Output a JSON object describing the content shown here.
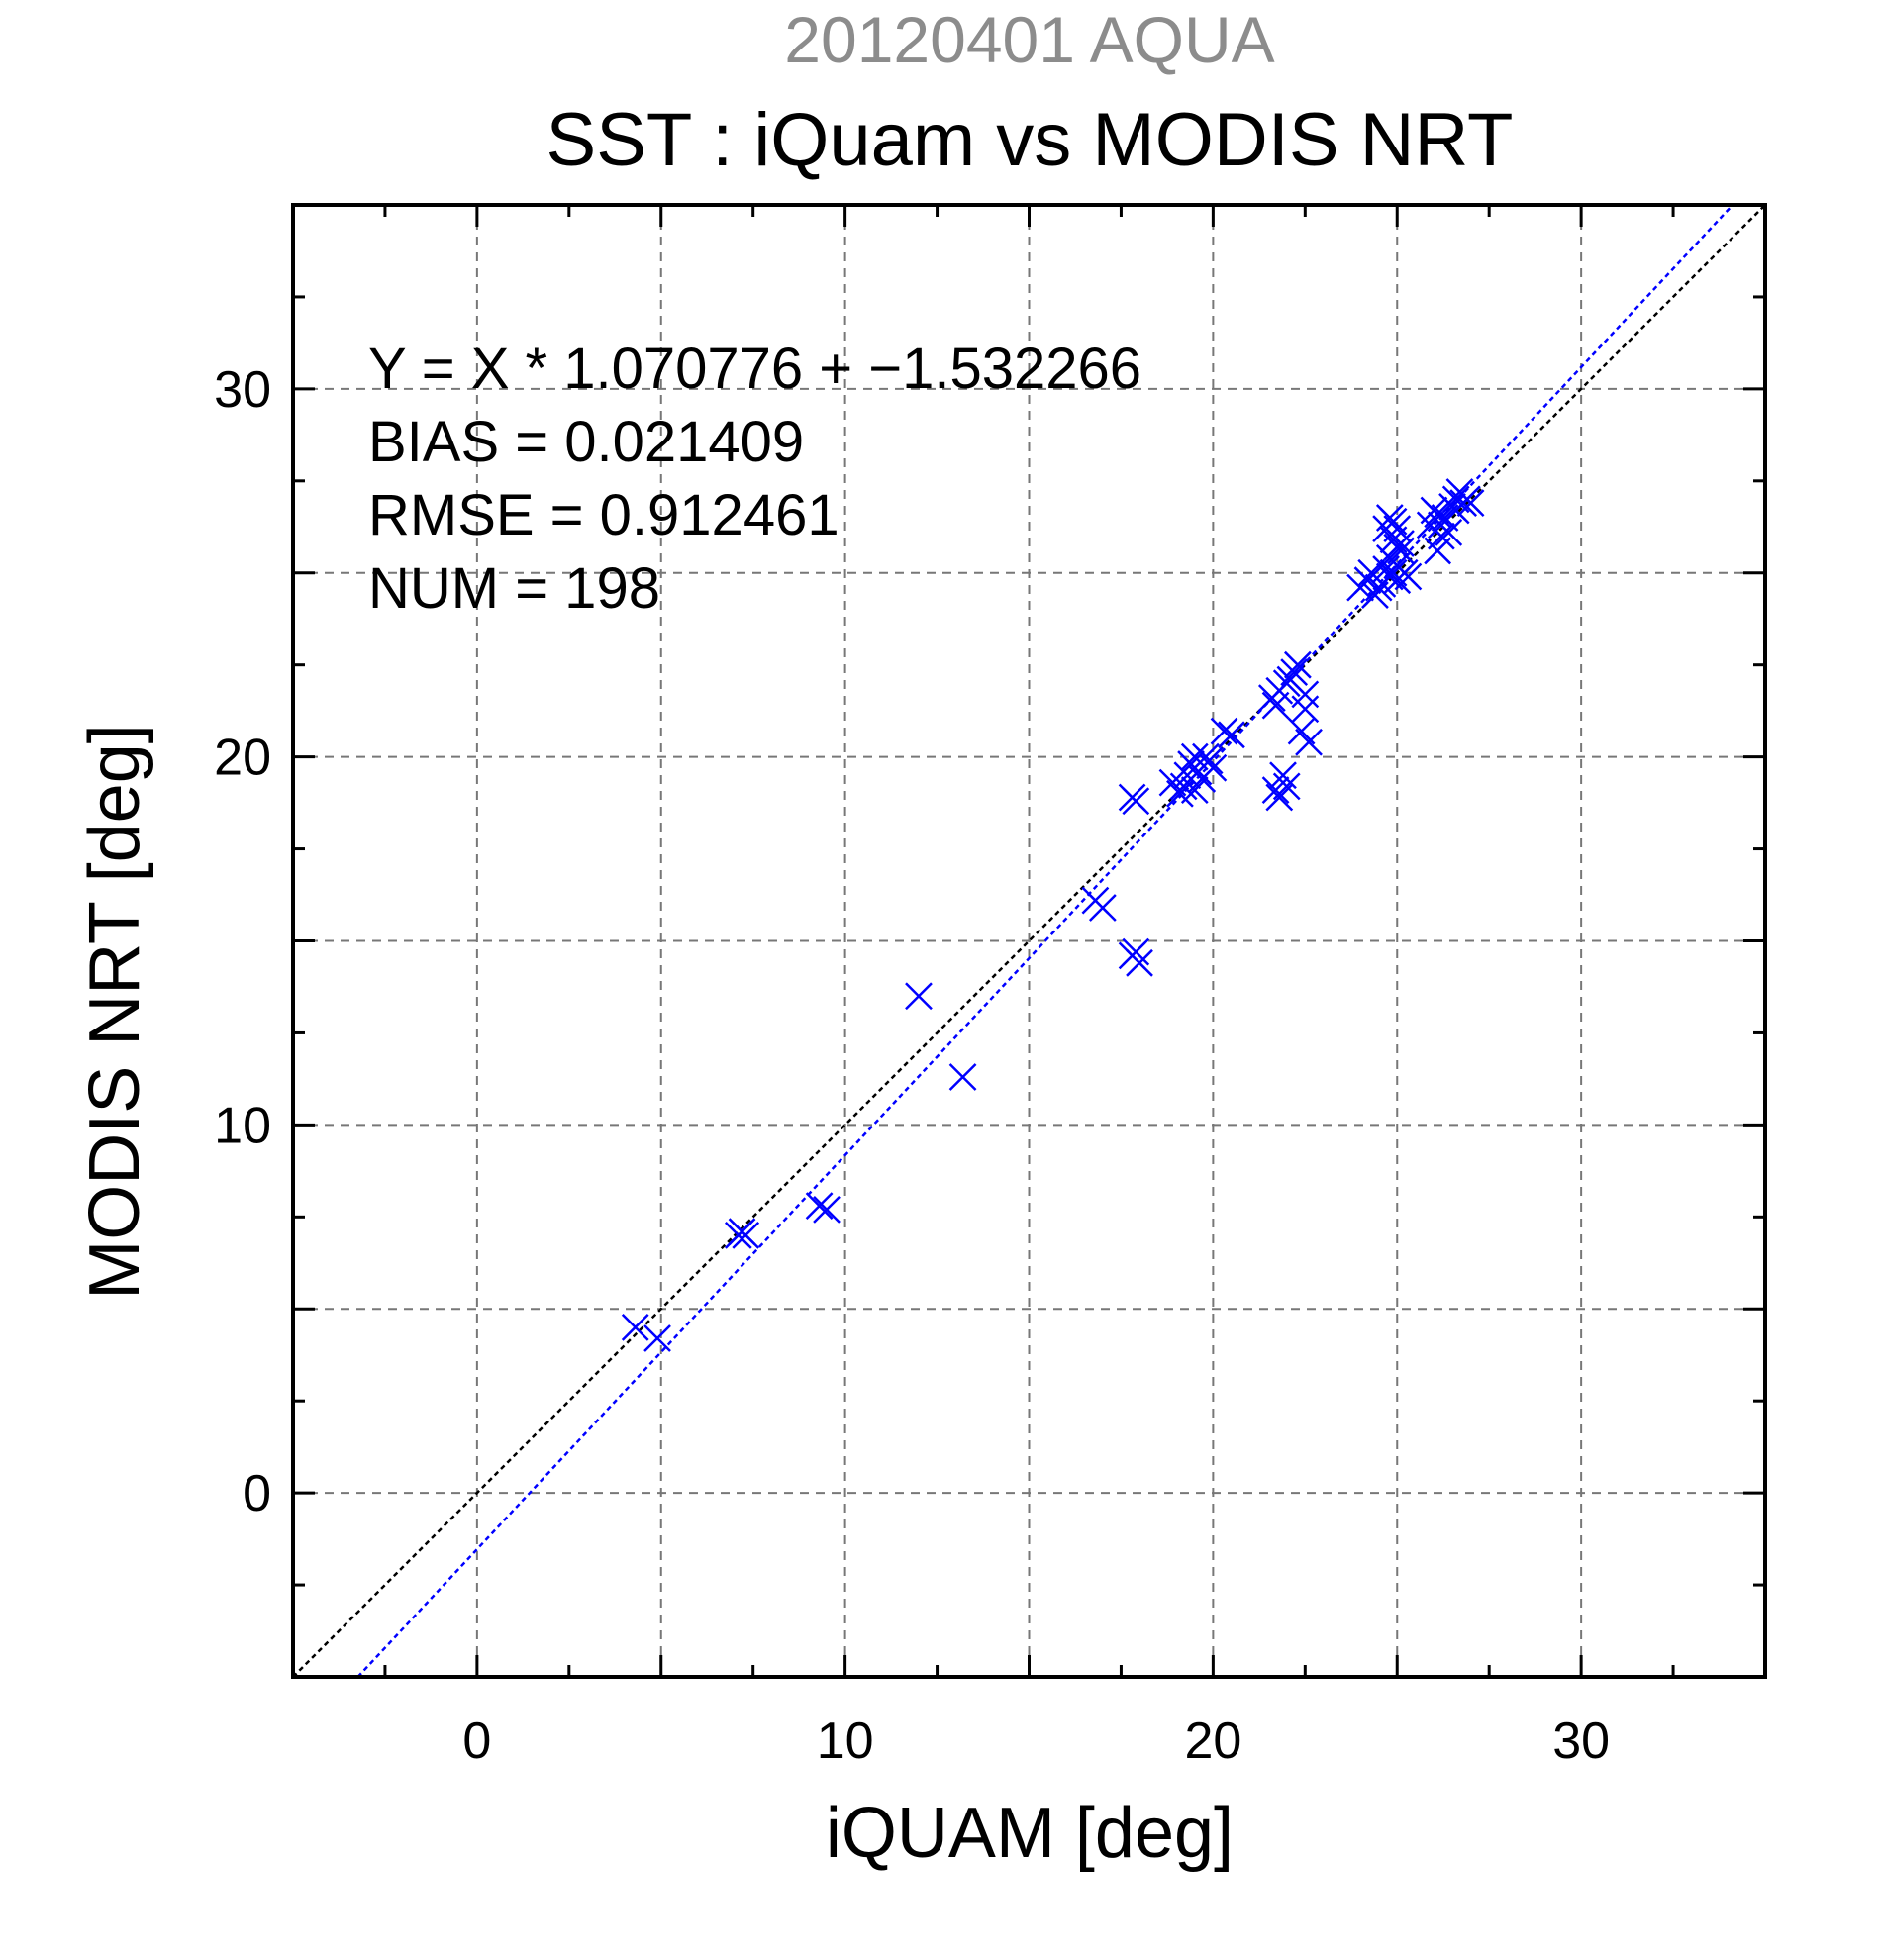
{
  "chart_data": {
    "type": "scatter",
    "title_top": "20120401 AQUA",
    "title": "SST : iQuam vs MODIS NRT",
    "xlabel": "iQUAM [deg]",
    "ylabel": "MODIS NRT [deg]",
    "xlim": [
      -5,
      35
    ],
    "ylim": [
      -5,
      35
    ],
    "xticks": [
      0,
      10,
      20,
      30
    ],
    "yticks": [
      0,
      10,
      20,
      30
    ],
    "grid": true,
    "stats": {
      "equation": "Y = X * 1.070776 + −1.532266",
      "bias": "BIAS = 0.021409",
      "rmse": "RMSE = 0.912461",
      "num": "NUM = 198"
    },
    "fit_line": {
      "slope": 1.070776,
      "intercept": -1.532266,
      "color": "#0000ff"
    },
    "identity_line": {
      "slope": 1,
      "intercept": 0,
      "color": "#000000"
    },
    "marker_color": "#0000ff",
    "points": [
      [
        4.3,
        4.5
      ],
      [
        4.9,
        4.2
      ],
      [
        7.1,
        7.0
      ],
      [
        7.2,
        7.1
      ],
      [
        7.3,
        7.0
      ],
      [
        9.3,
        7.8
      ],
      [
        9.5,
        7.7
      ],
      [
        12.0,
        13.5
      ],
      [
        13.2,
        11.3
      ],
      [
        16.8,
        16.1
      ],
      [
        17.0,
        15.9
      ],
      [
        17.9,
        18.8
      ],
      [
        17.8,
        18.9
      ],
      [
        17.8,
        14.6
      ],
      [
        18.0,
        14.4
      ],
      [
        17.9,
        14.7
      ],
      [
        18.9,
        19.3
      ],
      [
        19.1,
        19.0
      ],
      [
        19.3,
        19.5
      ],
      [
        19.5,
        19.1
      ],
      [
        19.4,
        19.8
      ],
      [
        19.6,
        19.6
      ],
      [
        19.8,
        20.0
      ],
      [
        19.7,
        19.4
      ],
      [
        20.0,
        19.7
      ],
      [
        19.2,
        19.2
      ],
      [
        19.9,
        19.9
      ],
      [
        19.5,
        20.0
      ],
      [
        20.3,
        20.7
      ],
      [
        20.5,
        20.6
      ],
      [
        21.6,
        21.6
      ],
      [
        21.8,
        21.8
      ],
      [
        21.7,
        21.4
      ],
      [
        22.1,
        22.1
      ],
      [
        22.3,
        22.5
      ],
      [
        22.0,
        22.0
      ],
      [
        22.2,
        22.3
      ],
      [
        21.7,
        19.1
      ],
      [
        22.0,
        19.2
      ],
      [
        21.9,
        19.5
      ],
      [
        21.8,
        18.9
      ],
      [
        22.5,
        21.3
      ],
      [
        22.4,
        20.7
      ],
      [
        22.6,
        20.4
      ],
      [
        22.5,
        21.7
      ],
      [
        24.0,
        24.6
      ],
      [
        24.2,
        24.8
      ],
      [
        24.4,
        24.4
      ],
      [
        24.3,
        25.0
      ],
      [
        24.5,
        24.6
      ],
      [
        24.7,
        25.1
      ],
      [
        24.8,
        25.4
      ],
      [
        24.9,
        25.0
      ],
      [
        25.0,
        24.8
      ],
      [
        25.1,
        25.6
      ],
      [
        25.2,
        25.0
      ],
      [
        25.3,
        24.9
      ],
      [
        24.6,
        24.7
      ],
      [
        24.8,
        24.9
      ],
      [
        25.0,
        25.2
      ],
      [
        24.7,
        26.2
      ],
      [
        24.8,
        26.5
      ],
      [
        24.9,
        26.4
      ],
      [
        25.0,
        26.2
      ],
      [
        24.9,
        25.9
      ],
      [
        25.0,
        25.7
      ],
      [
        25.1,
        25.8
      ],
      [
        25.9,
        26.3
      ],
      [
        26.1,
        26.6
      ],
      [
        26.2,
        26.3
      ],
      [
        26.0,
        26.7
      ],
      [
        26.3,
        26.5
      ],
      [
        26.1,
        25.6
      ],
      [
        26.2,
        26.0
      ],
      [
        26.4,
        26.1
      ],
      [
        26.5,
        26.8
      ],
      [
        26.6,
        27.0
      ],
      [
        26.8,
        26.9
      ],
      [
        26.7,
        27.2
      ],
      [
        26.9,
        27.0
      ],
      [
        26.6,
        26.7
      ],
      [
        27.0,
        26.9
      ]
    ]
  }
}
